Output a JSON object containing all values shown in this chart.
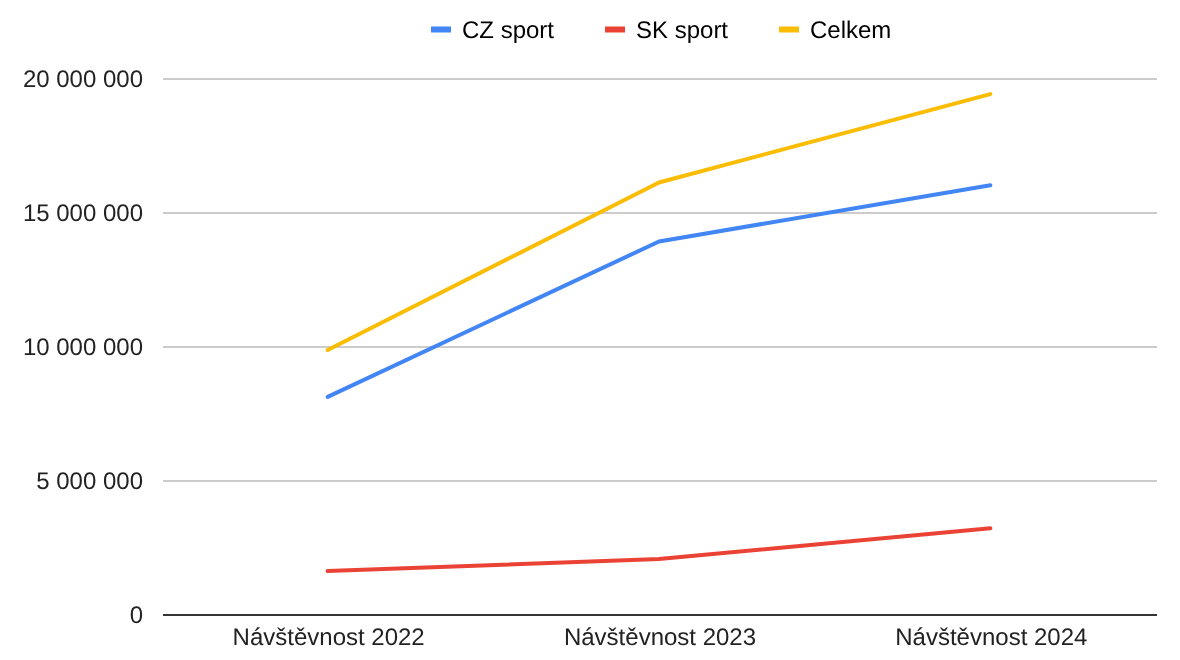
{
  "chart_data": {
    "type": "line",
    "categories": [
      "Návštěvnost 2022",
      "Návštěvnost 2023",
      "Návštěvnost 2024"
    ],
    "series": [
      {
        "name": "CZ sport",
        "color": "#4285f4",
        "values": [
          8100000,
          13900000,
          16000000
        ]
      },
      {
        "name": "SK sport",
        "color": "#ea4335",
        "values": [
          1600000,
          2050000,
          3200000
        ]
      },
      {
        "name": "Celkem",
        "color": "#fbbc04",
        "values": [
          9850000,
          16100000,
          19400000
        ]
      }
    ],
    "ylim": [
      0,
      20000000
    ],
    "yticks": [
      {
        "value": 0,
        "label": "0"
      },
      {
        "value": 5000000,
        "label": "5 000 000"
      },
      {
        "value": 10000000,
        "label": "10 000 000"
      },
      {
        "value": 15000000,
        "label": "15 000 000"
      },
      {
        "value": 20000000,
        "label": "20 000 000"
      }
    ],
    "grid": "y",
    "legend": "top",
    "marker": "none",
    "line_style": "solid"
  }
}
